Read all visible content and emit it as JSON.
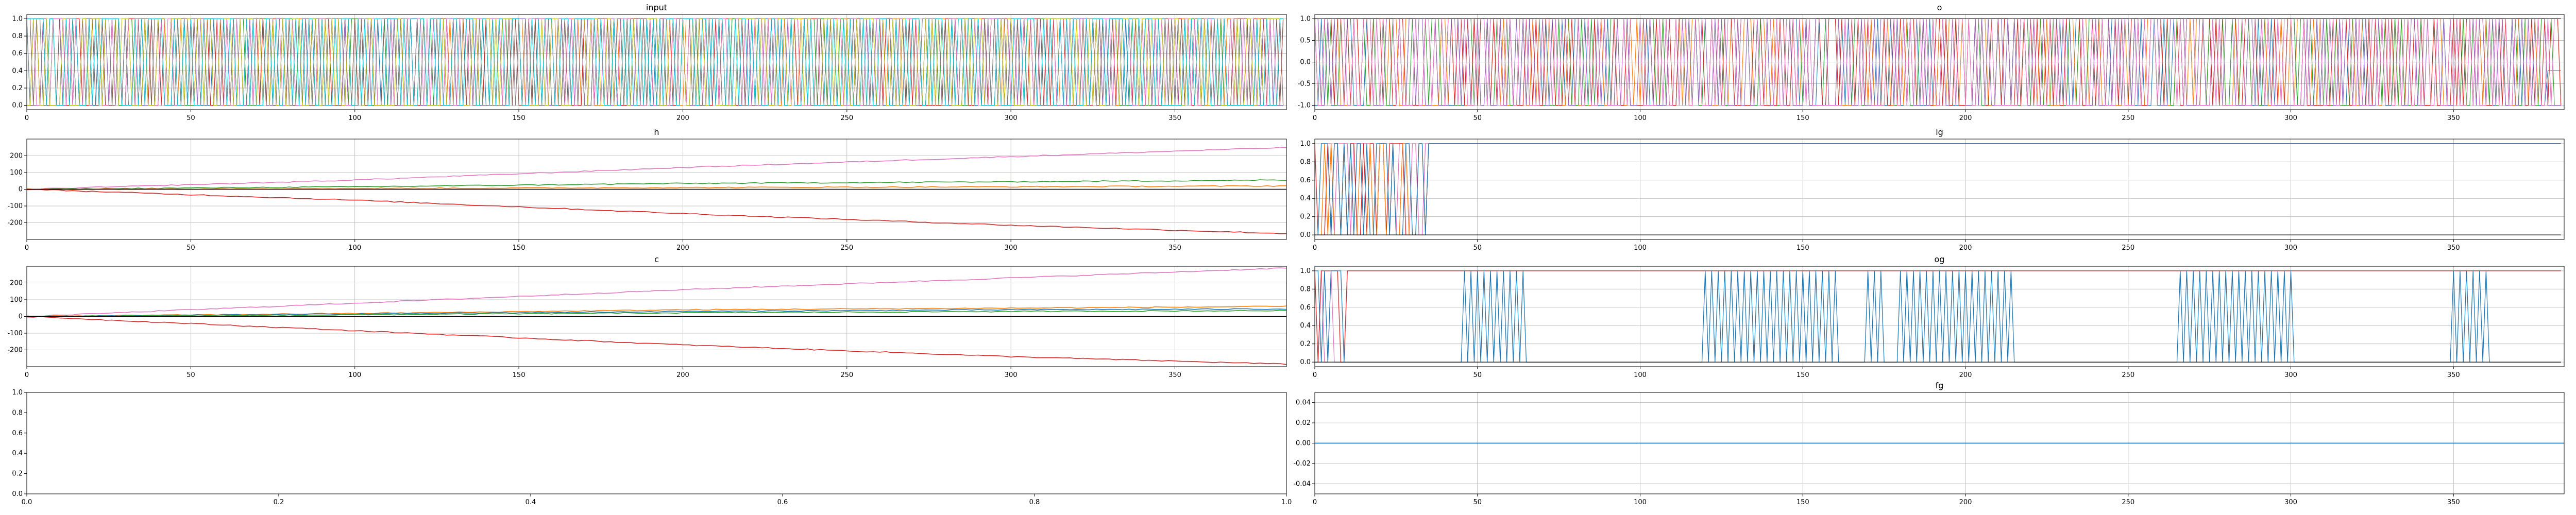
{
  "chart_data": [
    {
      "name": "input",
      "type": "line",
      "title": "input",
      "xlim": [
        0,
        384
      ],
      "ylim": [
        -0.05,
        1.05
      ],
      "xticks": [
        "0",
        "50",
        "100",
        "150",
        "200",
        "250",
        "300",
        "350"
      ],
      "yticks": [
        "0.0",
        "0.2",
        "0.4",
        "0.6",
        "0.8",
        "1.0"
      ],
      "grid": true,
      "pattern": "binary",
      "series": [
        {
          "color": "#1f77b4"
        },
        {
          "color": "#ff7f0e"
        },
        {
          "color": "#2ca02c"
        },
        {
          "color": "#d62728"
        },
        {
          "color": "#9467bd"
        },
        {
          "color": "#8c564b"
        },
        {
          "color": "#e377c2"
        },
        {
          "color": "#7f7f7f"
        },
        {
          "color": "#bcbd22"
        },
        {
          "color": "#17becf"
        }
      ]
    },
    {
      "name": "o",
      "type": "line",
      "title": "o",
      "xlim": [
        0,
        384
      ],
      "ylim": [
        -1.1,
        1.1
      ],
      "xticks": [
        "0",
        "50",
        "100",
        "150",
        "200",
        "250",
        "300",
        "350"
      ],
      "yticks": [
        "-1.0",
        "-0.5",
        "0.0",
        "0.5",
        "1.0"
      ],
      "grid": true,
      "pattern": "bipolar",
      "series": [
        {
          "color": "#1f77b4"
        },
        {
          "color": "#ff7f0e"
        },
        {
          "color": "#2ca02c"
        },
        {
          "color": "#d62728"
        },
        {
          "color": "#9467bd"
        },
        {
          "color": "#e377c2"
        },
        {
          "color": "#000000"
        }
      ]
    },
    {
      "name": "h",
      "type": "line",
      "title": "h",
      "xlim": [
        0,
        384
      ],
      "ylim": [
        -300,
        300
      ],
      "xticks": [
        "0",
        "50",
        "100",
        "150",
        "200",
        "250",
        "300",
        "350"
      ],
      "yticks": [
        "-200",
        "-100",
        "0",
        "100",
        "200"
      ],
      "grid": true,
      "pattern": "trends",
      "series": [
        {
          "color": "#e377c2",
          "x": [
            0,
            100,
            200,
            300,
            384
          ],
          "y": [
            0,
            55,
            130,
            195,
            250
          ]
        },
        {
          "color": "#2ca02c",
          "x": [
            0,
            100,
            200,
            300,
            384
          ],
          "y": [
            0,
            15,
            35,
            45,
            55
          ]
        },
        {
          "color": "#ff7f0e",
          "x": [
            0,
            100,
            200,
            300,
            384
          ],
          "y": [
            0,
            5,
            10,
            15,
            20
          ]
        },
        {
          "color": "#d62728",
          "x": [
            0,
            100,
            200,
            300,
            384
          ],
          "y": [
            0,
            -65,
            -145,
            -215,
            -265
          ]
        },
        {
          "color": "#000000",
          "x": [
            0,
            384
          ],
          "y": [
            0,
            0
          ]
        }
      ]
    },
    {
      "name": "ig",
      "type": "line",
      "title": "ig",
      "xlim": [
        0,
        384
      ],
      "ylim": [
        -0.05,
        1.05
      ],
      "xticks": [
        "0",
        "50",
        "100",
        "150",
        "200",
        "250",
        "300",
        "350"
      ],
      "yticks": [
        "0.0",
        "0.2",
        "0.4",
        "0.6",
        "0.8",
        "1.0"
      ],
      "grid": true,
      "pattern": "gate-early",
      "series": [
        {
          "color": "#e377c2"
        },
        {
          "color": "#d62728"
        },
        {
          "color": "#ff7f0e"
        },
        {
          "color": "#1f77b4"
        },
        {
          "color": "#000000"
        }
      ]
    },
    {
      "name": "c",
      "type": "line",
      "title": "c",
      "xlim": [
        0,
        384
      ],
      "ylim": [
        -300,
        300
      ],
      "xticks": [
        "0",
        "50",
        "100",
        "150",
        "200",
        "250",
        "300",
        "350"
      ],
      "yticks": [
        "-200",
        "-100",
        "0",
        "100",
        "200"
      ],
      "grid": true,
      "pattern": "trends",
      "series": [
        {
          "color": "#e377c2",
          "x": [
            0,
            100,
            200,
            300,
            384
          ],
          "y": [
            0,
            80,
            160,
            230,
            290
          ]
        },
        {
          "color": "#ff7f0e",
          "x": [
            0,
            100,
            200,
            300,
            384
          ],
          "y": [
            0,
            18,
            40,
            50,
            60
          ]
        },
        {
          "color": "#1f77b4",
          "x": [
            0,
            100,
            200,
            300,
            384
          ],
          "y": [
            0,
            15,
            30,
            40,
            45
          ]
        },
        {
          "color": "#2ca02c",
          "x": [
            0,
            100,
            200,
            300,
            384
          ],
          "y": [
            0,
            10,
            22,
            30,
            35
          ]
        },
        {
          "color": "#d62728",
          "x": [
            0,
            100,
            200,
            300,
            384
          ],
          "y": [
            0,
            -85,
            -170,
            -240,
            -285
          ]
        },
        {
          "color": "#000000",
          "x": [
            0,
            384
          ],
          "y": [
            0,
            0
          ]
        }
      ]
    },
    {
      "name": "og",
      "type": "line",
      "title": "og",
      "xlim": [
        0,
        384
      ],
      "ylim": [
        -0.05,
        1.05
      ],
      "xticks": [
        "0",
        "50",
        "100",
        "150",
        "200",
        "250",
        "300",
        "350"
      ],
      "yticks": [
        "0.0",
        "0.2",
        "0.4",
        "0.6",
        "0.8",
        "1.0"
      ],
      "grid": true,
      "pattern": "gate-bursts",
      "bursts": [
        [
          45,
          65
        ],
        [
          120,
          160
        ],
        [
          170,
          175
        ],
        [
          180,
          215
        ],
        [
          265,
          300
        ],
        [
          350,
          360
        ]
      ],
      "series": [
        {
          "color": "#e377c2"
        },
        {
          "color": "#d62728"
        },
        {
          "color": "#1f77b4"
        },
        {
          "color": "#000000"
        }
      ]
    },
    {
      "name": "empty",
      "type": "line",
      "title": "",
      "xlim": [
        0,
        1
      ],
      "ylim": [
        0,
        1
      ],
      "xticks": [
        "0.0",
        "0.2",
        "0.4",
        "0.6",
        "0.8",
        "1.0"
      ],
      "yticks": [
        "0.0",
        "0.2",
        "0.4",
        "0.6",
        "0.8",
        "1.0"
      ],
      "grid": false,
      "pattern": "none",
      "series": []
    },
    {
      "name": "fg",
      "type": "line",
      "title": "fg",
      "xlim": [
        0,
        384
      ],
      "ylim": [
        -0.05,
        0.05
      ],
      "xticks": [
        "0",
        "50",
        "100",
        "150",
        "200",
        "250",
        "300",
        "350"
      ],
      "yticks": [
        "-0.04",
        "-0.02",
        "0.00",
        "0.02",
        "0.04"
      ],
      "grid": true,
      "pattern": "flat",
      "series": [
        {
          "color": "#1f77b4",
          "x": [
            0,
            384
          ],
          "y": [
            0,
            0
          ]
        }
      ]
    }
  ]
}
